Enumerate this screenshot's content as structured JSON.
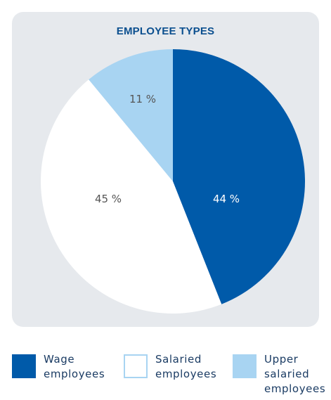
{
  "chart_data": {
    "type": "pie",
    "title": "EMPLOYEE TYPES",
    "slices": [
      {
        "label": "Wage employees",
        "value": 44,
        "value_label": "44 %",
        "color": "#005aa9"
      },
      {
        "label": "Salaried employees",
        "value": 45,
        "value_label": "45 %",
        "color": "#ffffff"
      },
      {
        "label": "Upper salaried employees",
        "value": 11,
        "value_label": "11 %",
        "color": "#a8d4f2"
      }
    ],
    "legend": {
      "position": "bottom",
      "items": [
        {
          "line1": "Wage",
          "line2": "employees",
          "line3": "",
          "color": "#005aa9"
        },
        {
          "line1": "Salaried",
          "line2": "employees",
          "line3": "",
          "color": "#ffffff"
        },
        {
          "line1": "Upper",
          "line2": "salaried",
          "line3": "employees",
          "color": "#a8d4f2"
        }
      ]
    }
  },
  "colors": {
    "card_background": "#e6e9ed",
    "title_color": "#0b4f8f",
    "label_dark": "#555555",
    "label_light": "#ffffff",
    "legend_text": "#1a3b63",
    "swatch_border": "#a8d4f2"
  }
}
